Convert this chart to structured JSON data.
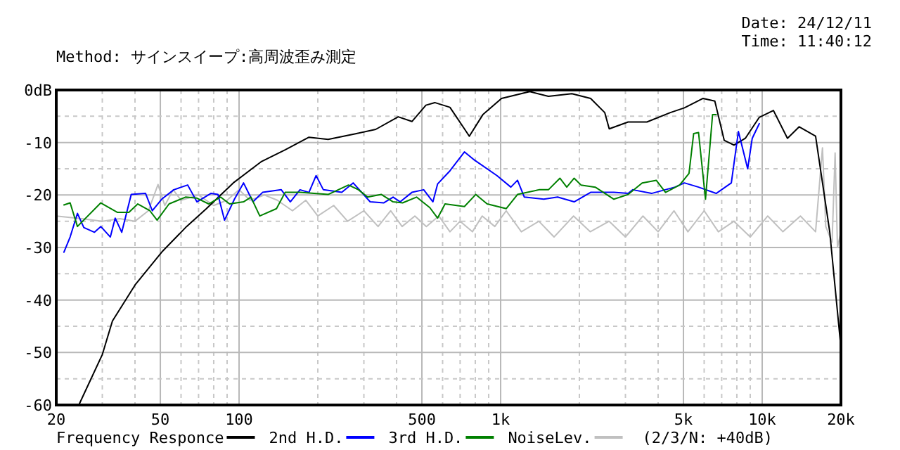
{
  "chart_data": {
    "type": "line",
    "title": "Method:  サインスイープ:高周波歪み測定",
    "annotations": [
      "Date: 24/12/11",
      "Time: 11:40:12",
      "(2/3/N: +40dB)"
    ],
    "log": "x",
    "grid": true,
    "legend": "bottom",
    "line_style": "solid",
    "marker": "none",
    "xlim": [
      20,
      20000
    ],
    "ylim": [
      -60,
      0
    ],
    "xticks": [
      20,
      {
        "value": 30,
        "label": null
      },
      {
        "value": 40,
        "label": null
      },
      50,
      {
        "value": 60,
        "label": null
      },
      {
        "value": 70,
        "label": null
      },
      {
        "value": 80,
        "label": null
      },
      {
        "value": 90,
        "label": null
      },
      100,
      {
        "value": 200,
        "label": null
      },
      {
        "value": 300,
        "label": null
      },
      {
        "value": 400,
        "label": null
      },
      500,
      {
        "value": 600,
        "label": null
      },
      {
        "value": 700,
        "label": null
      },
      {
        "value": 800,
        "label": null
      },
      {
        "value": 900,
        "label": null
      },
      {
        "value": 1000,
        "label": "1k"
      },
      {
        "value": 2000,
        "label": null
      },
      {
        "value": 3000,
        "label": null
      },
      {
        "value": 4000,
        "label": null
      },
      {
        "value": 5000,
        "label": "5k"
      },
      {
        "value": 6000,
        "label": null
      },
      {
        "value": 7000,
        "label": null
      },
      {
        "value": 8000,
        "label": null
      },
      {
        "value": 9000,
        "label": null
      },
      {
        "value": 10000,
        "label": "10k"
      },
      {
        "value": 20000,
        "label": "20k"
      }
    ],
    "yticks": [
      {
        "value": 0,
        "label": "0dB"
      },
      {
        "value": -5,
        "label": null
      },
      -10,
      {
        "value": -15,
        "label": null
      },
      -20,
      {
        "value": -25,
        "label": null
      },
      -30,
      {
        "value": -35,
        "label": null
      },
      -40,
      {
        "value": -45,
        "label": null
      },
      -50,
      {
        "value": -55,
        "label": null
      },
      -60
    ],
    "series": [
      {
        "name": "NoiseLev.",
        "color": "#c0c0c0",
        "x": [
          20,
          25,
          30,
          35,
          40,
          45,
          49,
          52,
          56,
          60,
          70,
          80,
          90,
          100,
          110,
          125,
          140,
          160,
          180,
          200,
          230,
          260,
          300,
          340,
          380,
          420,
          470,
          520,
          580,
          640,
          700,
          780,
          850,
          950,
          1050,
          1200,
          1400,
          1600,
          1900,
          2200,
          2600,
          3000,
          3500,
          4000,
          4600,
          5200,
          6000,
          6800,
          7800,
          9000,
          10500,
          12000,
          14000,
          16000,
          17000,
          17500,
          18500,
          19000,
          19400,
          20000
        ],
        "values": [
          -24,
          -24.5,
          -25,
          -24.5,
          -25,
          -23,
          -18,
          -22,
          -19,
          -21,
          -20,
          -22,
          -21,
          -19,
          -21,
          -20,
          -21,
          -23,
          -21,
          -24,
          -22,
          -25,
          -23,
          -26,
          -23,
          -26,
          -24,
          -26,
          -24,
          -27,
          -25,
          -27,
          -24,
          -26,
          -23,
          -27,
          -25,
          -28,
          -24,
          -27,
          -25,
          -28,
          -24,
          -27,
          -23,
          -27,
          -23,
          -27,
          -25,
          -28,
          -24,
          -27,
          -24,
          -27,
          -11,
          -26,
          -29,
          -12,
          -30,
          -27
        ]
      },
      {
        "name": "Frequency Responce",
        "color": "#000000",
        "x": [
          24.4,
          30,
          32.8,
          40.2,
          51,
          63,
          75,
          95,
          122,
          150,
          185,
          219,
          281,
          333,
          406,
          458,
          518,
          560,
          640,
          727,
          759,
          855,
          1008,
          1292,
          1523,
          1872,
          2208,
          2500,
          2601,
          3072,
          3624,
          4455,
          5042,
          5943,
          6590,
          7160,
          7800,
          8620,
          9750,
          11040,
          12490,
          13850,
          16000,
          18120,
          19900
        ],
        "values": [
          -60,
          -50.4,
          -44,
          -37,
          -30.7,
          -26,
          -22.6,
          -17.7,
          -13.6,
          -11.4,
          -9,
          -9.4,
          -8.3,
          -7.5,
          -5.1,
          -6,
          -2.9,
          -2.4,
          -3.3,
          -7.4,
          -8.8,
          -4.7,
          -1.6,
          -0.3,
          -1.2,
          -0.7,
          -1.6,
          -4.3,
          -7.4,
          -6.1,
          -6.1,
          -4.3,
          -3.4,
          -1.6,
          -2.1,
          -9.6,
          -10.5,
          -9.2,
          -5.2,
          -3.9,
          -9.2,
          -7,
          -8.8,
          -27,
          -48
        ]
      },
      {
        "name": "2nd H.D.",
        "color": "#0000ff",
        "x": [
          21.4,
          22.6,
          24.1,
          25.5,
          28,
          29.6,
          32.2,
          33.6,
          35.6,
          38.7,
          43.9,
          46.6,
          50.6,
          56.3,
          63.6,
          69,
          78,
          83,
          88,
          96,
          104,
          113,
          123,
          145,
          157,
          171,
          185,
          197,
          210,
          247,
          273,
          317,
          357,
          388,
          413,
          458,
          508,
          551,
          574,
          640,
          727,
          787,
          968,
          1094,
          1160,
          1232,
          1462,
          1651,
          1910,
          2208,
          2710,
          3072,
          3200,
          3775,
          4640,
          5042,
          5710,
          6670,
          7620,
          8110,
          8800,
          9160,
          9750
        ],
        "values": [
          -30.9,
          -28,
          -23.5,
          -26.2,
          -27.1,
          -26,
          -28,
          -24.4,
          -27.1,
          -19.9,
          -19.7,
          -23,
          -20.8,
          -19,
          -18.1,
          -21.3,
          -19.7,
          -19.9,
          -24.8,
          -20.8,
          -17.7,
          -21.3,
          -19.5,
          -19,
          -21.3,
          -19,
          -19.5,
          -16.3,
          -19,
          -19.5,
          -17.7,
          -21.3,
          -21.5,
          -20.4,
          -21.3,
          -19.5,
          -19,
          -21.3,
          -17.9,
          -15.4,
          -11.8,
          -13.2,
          -16.3,
          -18.5,
          -17.2,
          -20.4,
          -20.8,
          -20.4,
          -21.3,
          -19.5,
          -19.5,
          -19.7,
          -19,
          -19.7,
          -18.5,
          -17.7,
          -18.5,
          -19.7,
          -17.7,
          -7.9,
          -15,
          -9.2,
          -6.4
        ]
      },
      {
        "name": "3rd H.D.",
        "color": "#008000",
        "x": [
          21.4,
          22.6,
          24.1,
          29.6,
          34.2,
          37.9,
          41,
          45.6,
          48.6,
          54,
          62.4,
          69,
          76.5,
          85,
          92,
          104,
          111,
          120,
          139,
          150,
          171,
          219,
          262,
          286,
          310,
          350,
          388,
          422,
          477,
          536,
          574,
          613,
          727,
          803,
          888,
          1051,
          1160,
          1402,
          1523,
          1685,
          1790,
          1910,
          2029,
          2300,
          2710,
          3072,
          3477,
          3935,
          4270,
          4833,
          5250,
          5470,
          5710,
          6070,
          6460,
          6670
        ],
        "values": [
          -21.9,
          -21.5,
          -26,
          -21.5,
          -23.3,
          -23.3,
          -21.7,
          -23,
          -24.8,
          -21.7,
          -20.4,
          -20.6,
          -21.7,
          -20.4,
          -21.7,
          -21.3,
          -20.4,
          -24,
          -22.6,
          -19.5,
          -19.5,
          -19.9,
          -18.1,
          -19,
          -20.4,
          -19.9,
          -21.3,
          -21.5,
          -20.4,
          -22.4,
          -24.4,
          -21.7,
          -22.2,
          -19.9,
          -21.7,
          -22.6,
          -19.9,
          -19,
          -19,
          -16.8,
          -18.5,
          -16.8,
          -18.1,
          -18.5,
          -20.8,
          -19.9,
          -17.7,
          -17.2,
          -19.5,
          -18.1,
          -15.9,
          -8.3,
          -8.1,
          -20.8,
          -4.7,
          -4.7
        ]
      }
    ]
  }
}
